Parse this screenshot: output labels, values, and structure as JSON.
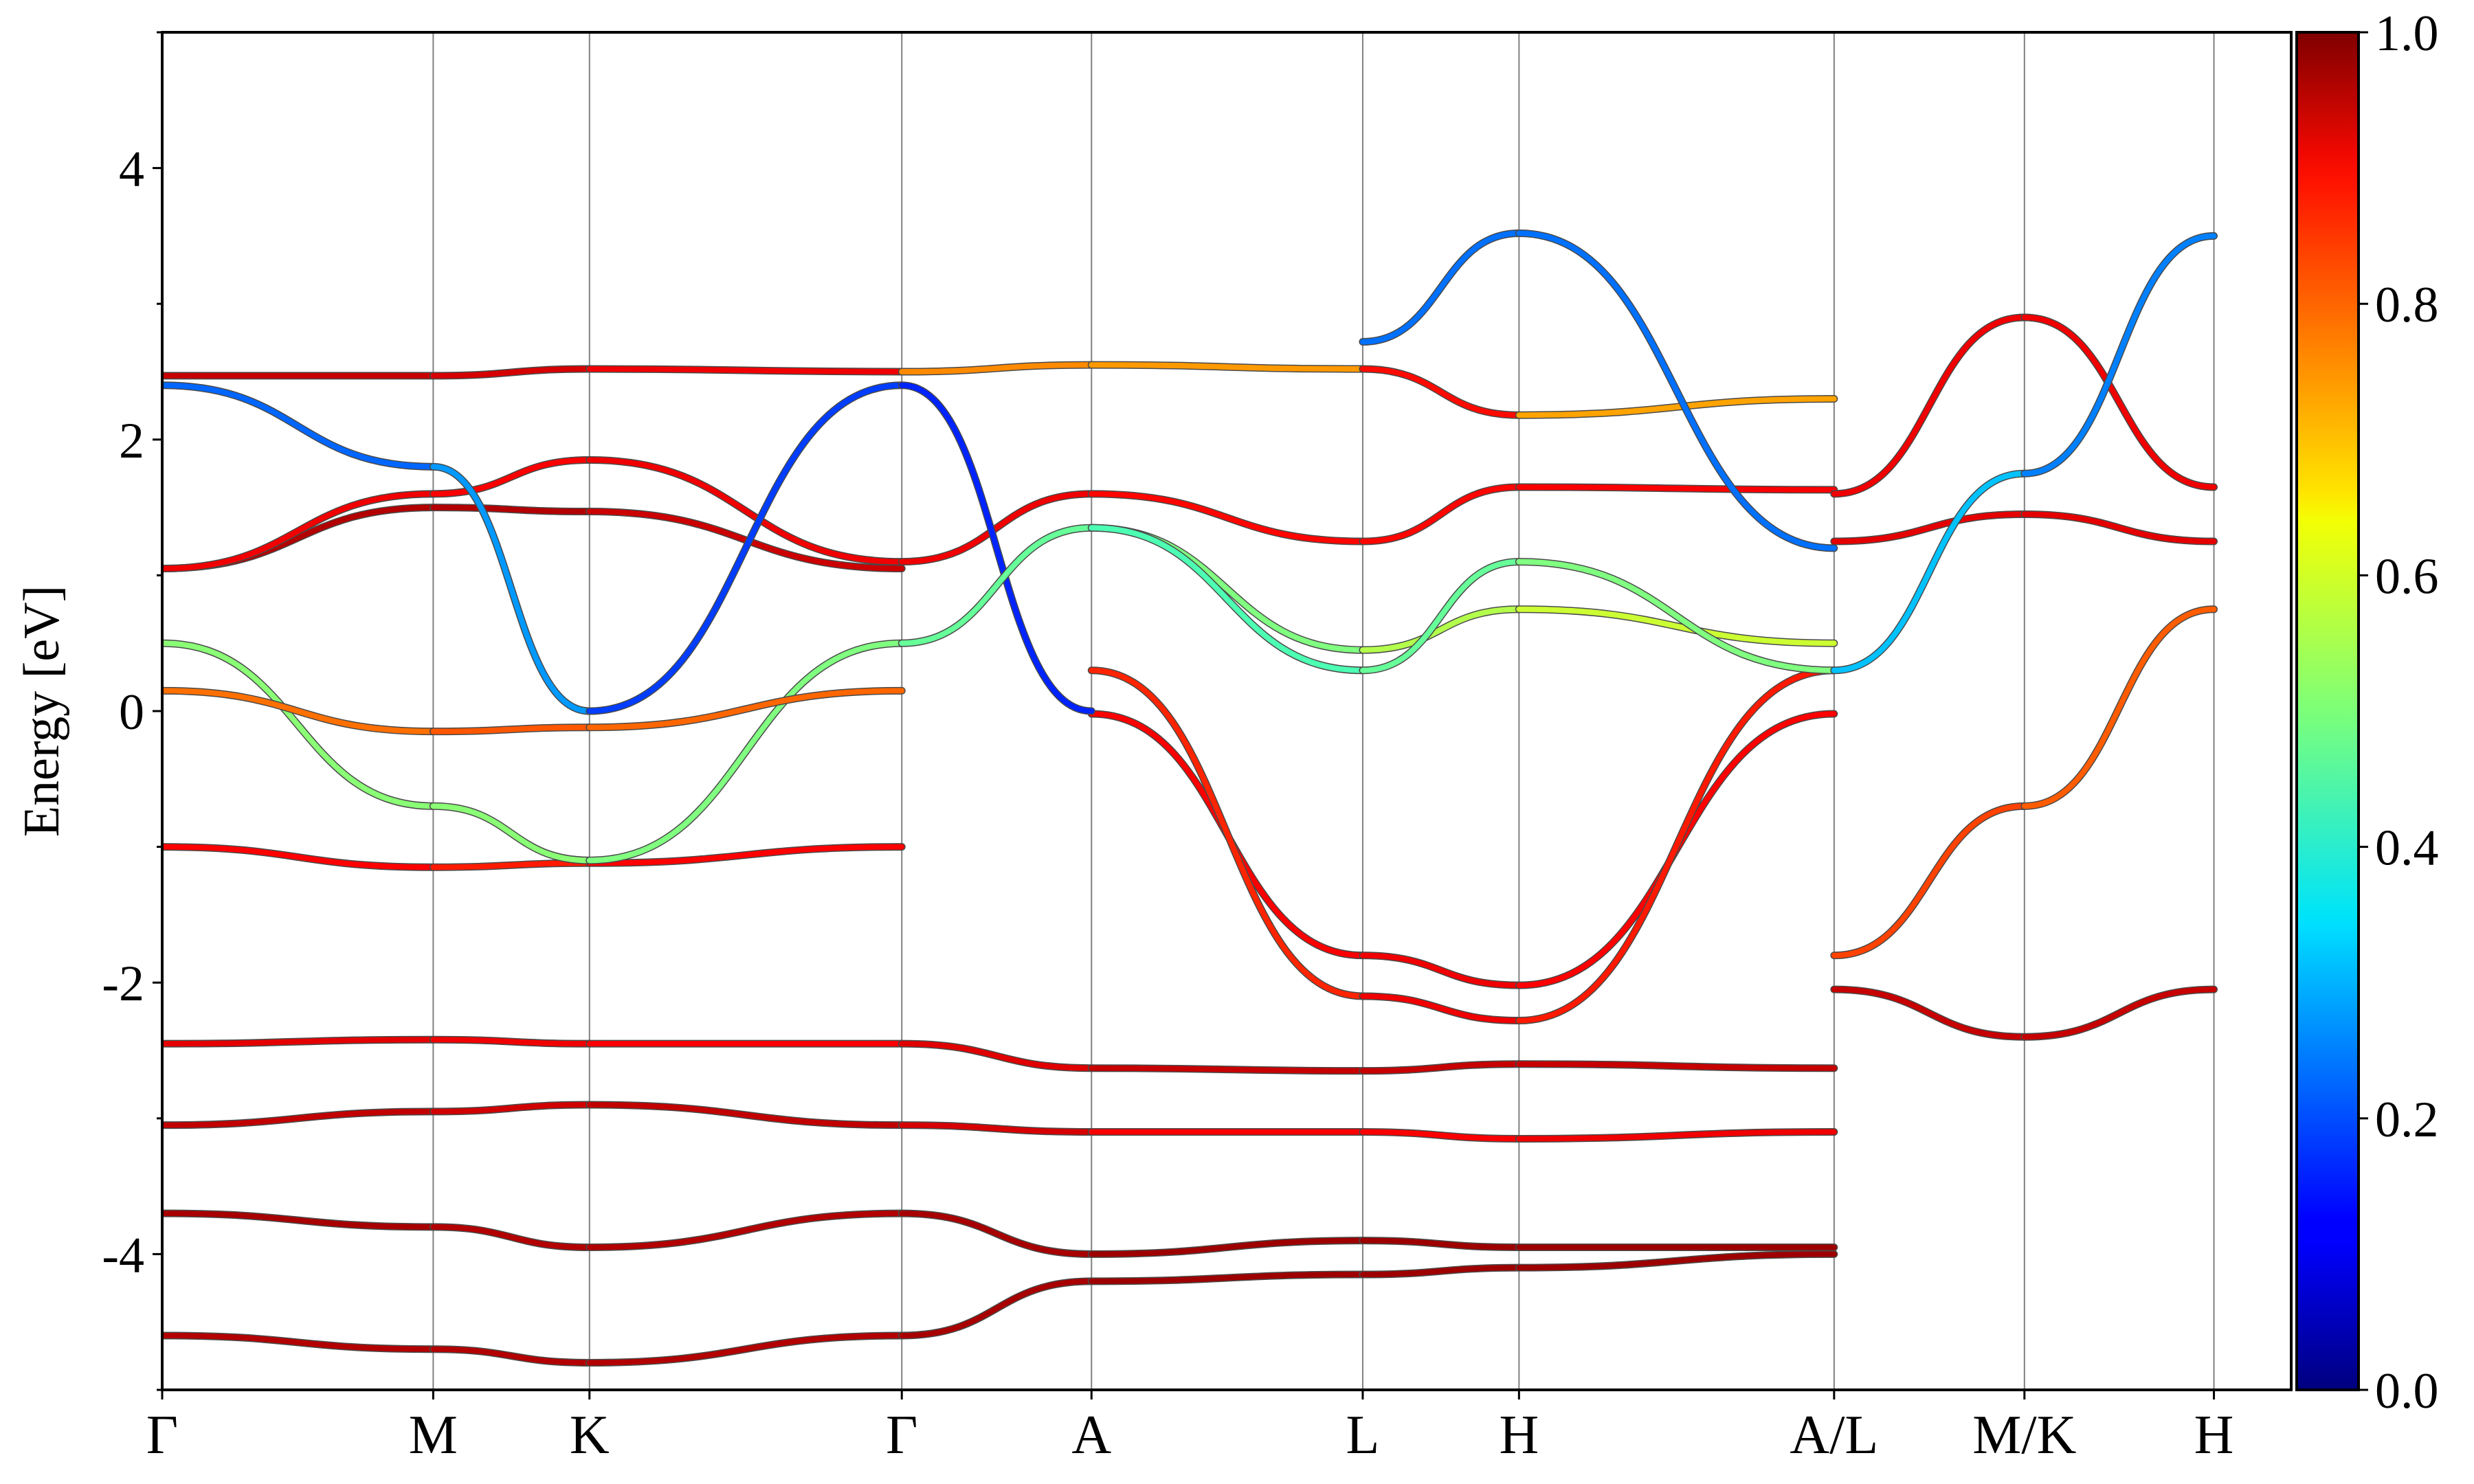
{
  "chart_data": {
    "type": "line",
    "ylabel": "Energy [eV]",
    "ylim": [
      -5,
      5
    ],
    "yticks": [
      -4,
      -2,
      0,
      2,
      4
    ],
    "ytick_labels": [
      "-4",
      "-2",
      "0",
      "2",
      "4"
    ],
    "kpath": [
      {
        "label": "Γ",
        "x": 0.0
      },
      {
        "label": "M",
        "x": 0.1273
      },
      {
        "label": "K",
        "x": 0.2007
      },
      {
        "label": "Γ",
        "x": 0.3474
      },
      {
        "label": "A",
        "x": 0.4365
      },
      {
        "label": "L",
        "x": 0.5639
      },
      {
        "label": "H",
        "x": 0.6373
      },
      {
        "label": "A/L",
        "x": 0.7853
      },
      {
        "label": "M/K",
        "x": 0.8747
      },
      {
        "label": "H",
        "x": 0.9637
      }
    ],
    "colorbar": {
      "cmap": "jet",
      "range": [
        0.0,
        1.0
      ],
      "ticks": [
        "0.0",
        "0.2",
        "0.4",
        "0.6",
        "0.8",
        "1.0"
      ]
    },
    "series": [
      {
        "x": [
          0.0,
          0.1273,
          0.2007,
          0.3474,
          0.4365,
          0.5639,
          0.6373,
          0.7853
        ],
        "y": [
          2.47,
          2.47,
          2.52,
          2.5,
          2.55,
          2.52,
          2.18,
          2.3
        ],
        "c": [
          0.93,
          0.93,
          0.9,
          0.88,
          0.6,
          0.85,
          0.88,
          0.55
        ]
      },
      {
        "x": [
          0.0,
          0.1273,
          0.2007,
          0.3474
        ],
        "y": [
          1.05,
          1.5,
          1.47,
          1.05
        ],
        "c": [
          0.95,
          0.95,
          0.95,
          0.9
        ]
      },
      {
        "x": [
          0.0,
          0.1273,
          0.2007,
          0.3474,
          0.4365,
          0.5639,
          0.6373,
          0.7853
        ],
        "y": [
          1.05,
          1.6,
          1.85,
          1.1,
          1.6,
          1.25,
          1.65,
          1.63
        ],
        "c": [
          0.9,
          0.88,
          0.88,
          0.9,
          0.88,
          0.86,
          0.88,
          0.88
        ]
      },
      {
        "x": [
          0.0,
          0.1273,
          0.2007,
          0.3474
        ],
        "y": [
          -1.0,
          -1.15,
          -1.12,
          -1.0
        ],
        "c": [
          0.9,
          0.85,
          0.85,
          0.9
        ]
      },
      {
        "x": [
          0.0,
          0.1273,
          0.2007,
          0.3474,
          0.4365,
          0.5639,
          0.6373,
          0.7853
        ],
        "y": [
          -2.45,
          -2.42,
          -2.45,
          -2.45,
          -2.63,
          -2.65,
          -2.6,
          -2.63
        ],
        "c": [
          0.9,
          0.9,
          0.88,
          0.88,
          0.93,
          0.93,
          0.93,
          0.93
        ]
      },
      {
        "x": [
          0.0,
          0.1273,
          0.2007,
          0.3474,
          0.4365,
          0.5639,
          0.6373,
          0.7853
        ],
        "y": [
          -3.05,
          -2.95,
          -2.9,
          -3.05,
          -3.1,
          -3.1,
          -3.15,
          -3.1
        ],
        "c": [
          0.95,
          0.92,
          0.92,
          0.95,
          0.88,
          0.88,
          0.88,
          0.9
        ]
      },
      {
        "x": [
          0.0,
          0.1273,
          0.2007,
          0.3474,
          0.4365,
          0.5639,
          0.6373,
          0.7853
        ],
        "y": [
          -3.7,
          -3.8,
          -3.95,
          -3.7,
          -4.0,
          -3.9,
          -3.95,
          -3.95
        ],
        "c": [
          0.97,
          0.95,
          0.95,
          0.95,
          0.97,
          0.97,
          0.97,
          0.97
        ]
      },
      {
        "x": [
          0.0,
          0.1273,
          0.2007,
          0.3474,
          0.4365,
          0.5639,
          0.6373,
          0.7853
        ],
        "y": [
          -4.6,
          -4.7,
          -4.8,
          -4.6,
          -4.2,
          -4.15,
          -4.1,
          -4.0
        ],
        "c": [
          0.95,
          0.95,
          0.95,
          0.95,
          0.97,
          0.97,
          0.97,
          0.97
        ]
      },
      {
        "x": [
          0.4365,
          0.5639,
          0.6373,
          0.7853
        ],
        "y": [
          -0.02,
          -1.8,
          -2.02,
          -0.02
        ],
        "c": [
          0.88,
          0.88,
          0.9,
          0.85
        ]
      },
      {
        "x": [
          0.4365,
          0.5639,
          0.6373,
          0.7853
        ],
        "y": [
          0.3,
          -2.1,
          -2.28,
          0.3
        ],
        "c": [
          0.8,
          0.88,
          0.9,
          0.8
        ]
      },
      {
        "x": [
          0.0,
          0.1273,
          0.2007,
          0.3474,
          0.4365
        ],
        "y": [
          2.4,
          1.8,
          0.0,
          2.4,
          0.0
        ],
        "c": [
          0.15,
          0.3,
          0.25,
          0.12,
          0.2
        ]
      },
      {
        "x": [
          0.5639,
          0.6373,
          0.7853
        ],
        "y": [
          2.72,
          3.52,
          1.2
        ],
        "c": [
          0.25,
          0.22,
          0.25
        ]
      },
      {
        "x": [
          0.4365,
          0.5639,
          0.6373,
          0.7853
        ],
        "y": [
          1.35,
          0.45,
          0.75,
          0.5
        ],
        "c": [
          0.5,
          0.5,
          0.6,
          0.55
        ]
      },
      {
        "x": [
          0.0,
          0.1273,
          0.2007,
          0.3474,
          0.4365,
          0.5639,
          0.6373,
          0.7853
        ],
        "y": [
          0.5,
          -0.7,
          -1.1,
          0.5,
          1.35,
          0.3,
          1.1,
          0.3
        ],
        "c": [
          0.5,
          0.52,
          0.5,
          0.5,
          0.45,
          0.45,
          0.5,
          0.5
        ]
      },
      {
        "x": [
          0.0,
          0.1273,
          0.2007,
          0.3474
        ],
        "y": [
          0.15,
          -0.15,
          -0.12,
          0.15
        ],
        "c": [
          0.75,
          0.78,
          0.8,
          0.75
        ]
      },
      {
        "x": [
          0.7853,
          0.8747,
          0.9637
        ],
        "y": [
          1.25,
          1.45,
          1.25
        ],
        "c": [
          0.9,
          0.9,
          0.9
        ]
      },
      {
        "x": [
          0.7853,
          0.8747,
          0.9637
        ],
        "y": [
          1.6,
          2.9,
          1.65
        ],
        "c": [
          0.9,
          0.88,
          0.9
        ]
      },
      {
        "x": [
          0.7853,
          0.8747,
          0.9637
        ],
        "y": [
          -2.05,
          -2.4,
          -2.05
        ],
        "c": [
          0.93,
          0.93,
          0.93
        ]
      },
      {
        "x": [
          0.7853,
          0.8747,
          0.9637
        ],
        "y": [
          -1.8,
          -0.7,
          0.75
        ],
        "c": [
          0.8,
          0.82,
          0.75
        ]
      },
      {
        "x": [
          0.7853,
          0.8747,
          0.9637
        ],
        "y": [
          0.3,
          1.75,
          3.5
        ],
        "c": [
          0.35,
          0.28,
          0.22
        ]
      }
    ]
  }
}
